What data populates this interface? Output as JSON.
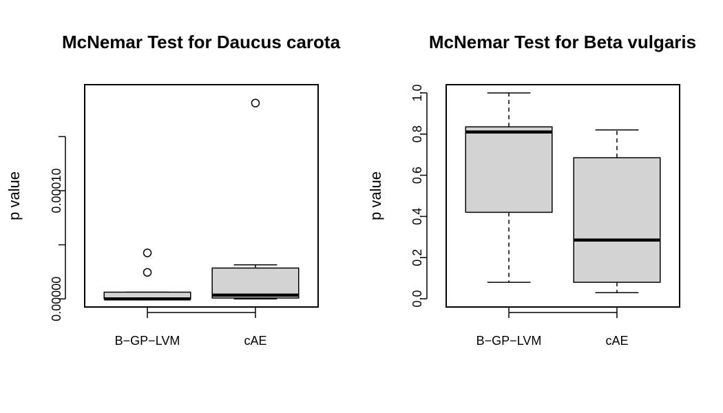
{
  "chart_data": [
    {
      "type": "box",
      "title": "McNemar Test for Daucus carota",
      "xlabel": "",
      "ylabel": "p value",
      "ylim": [
        -7.5e-06,
        0.000198
      ],
      "y_tick_values": [
        0,
        5e-05,
        0.0001,
        0.00015
      ],
      "y_tick_labels": [
        "0.00000",
        "",
        "0.00010",
        ""
      ],
      "grid": false,
      "categories": [
        "B−GP−LVM",
        "cAE"
      ],
      "boxes": [
        {
          "name": "B−GP−LVM",
          "whisker_low": 0,
          "q1": 0,
          "median": 0,
          "q3": 6.2e-06,
          "whisker_high": 6.2e-06,
          "outliers": [
            2.45e-05,
            4.25e-05
          ]
        },
        {
          "name": "cAE",
          "whisker_low": 0,
          "q1": 8e-07,
          "median": 3.5e-06,
          "q3": 2.85e-05,
          "whisker_high": 3.15e-05,
          "outliers": [
            0.000181
          ]
        }
      ],
      "box_fill": "#d3d3d3"
    },
    {
      "type": "box",
      "title": "McNemar Test for Beta vulgaris",
      "xlabel": "",
      "ylabel": "p value",
      "ylim": [
        -0.04,
        1.04
      ],
      "y_tick_values": [
        0,
        0.2,
        0.4,
        0.6,
        0.8,
        1.0
      ],
      "y_tick_labels": [
        "0.0",
        "0.2",
        "0.4",
        "0.6",
        "0.8",
        "1.0"
      ],
      "grid": false,
      "categories": [
        "B−GP−LVM",
        "cAE"
      ],
      "boxes": [
        {
          "name": "B−GP−LVM",
          "whisker_low": 0.08,
          "q1": 0.42,
          "median": 0.81,
          "q3": 0.835,
          "whisker_high": 1.0,
          "outliers": []
        },
        {
          "name": "cAE",
          "whisker_low": 0.03,
          "q1": 0.08,
          "median": 0.285,
          "q3": 0.685,
          "whisker_high": 0.82,
          "outliers": []
        }
      ],
      "box_fill": "#d3d3d3"
    }
  ]
}
